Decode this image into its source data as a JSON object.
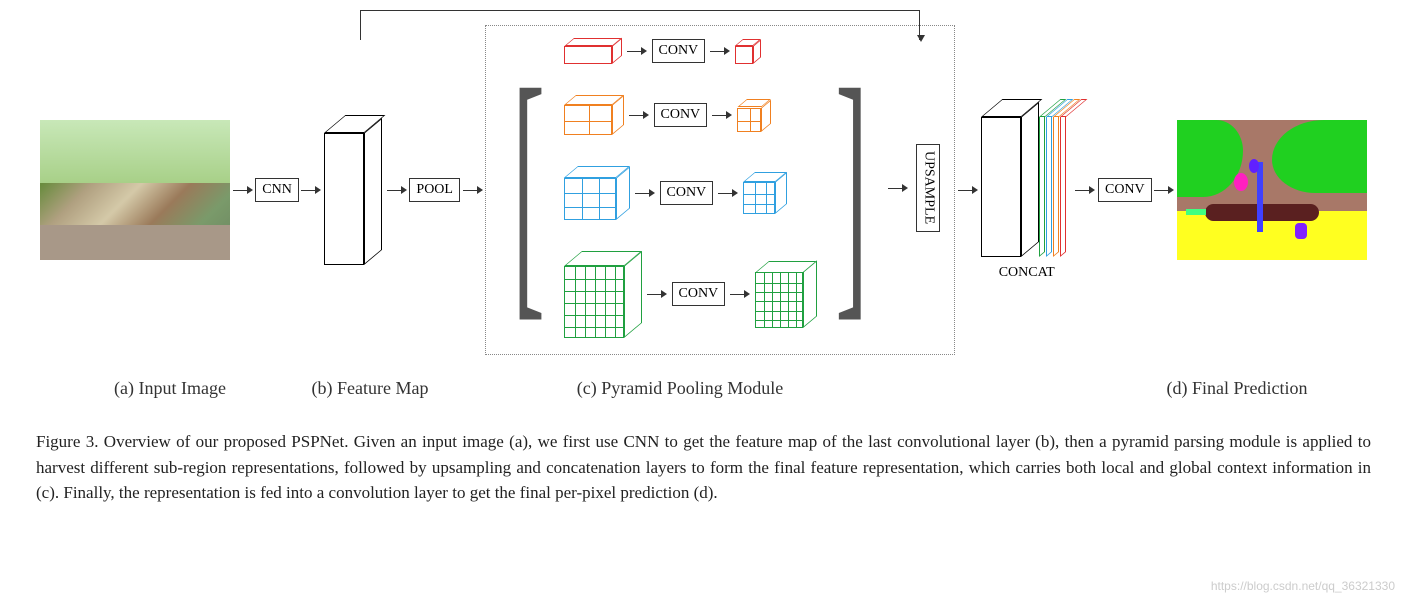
{
  "labels": {
    "a": "(a) Input Image",
    "b": "(b) Feature Map",
    "c": "(c) Pyramid Pooling Module",
    "d": "(d) Final Prediction"
  },
  "ops": {
    "cnn": "CNN",
    "pool": "POOL",
    "conv": "CONV",
    "upsample": "UPSAMPLE",
    "concat": "CONCAT"
  },
  "caption": "Figure 3. Overview of our proposed PSPNet. Given an input image (a), we first use CNN to get the feature map of the last convolutional layer (b), then a pyramid parsing module is applied to harvest different sub-region representations, followed by upsampling and concatenation layers to form the final feature representation, which carries both local and global context information in (c). Finally, the representation is fed into a convolution layer to get the final per-pixel prediction (d).",
  "watermark": "https://blog.csdn.net/qq_36321330",
  "pyramid_branches": [
    {
      "color": "#e03030",
      "grid": 1,
      "pre_w": 48,
      "pre_h": 18,
      "pre_d": 10,
      "post_w": 18,
      "post_h": 18,
      "post_d": 8
    },
    {
      "color": "#f08020",
      "grid": 2,
      "pre_w": 48,
      "pre_h": 30,
      "pre_d": 12,
      "post_w": 24,
      "post_h": 24,
      "post_d": 10
    },
    {
      "color": "#30a0e0",
      "grid": 3,
      "pre_w": 52,
      "pre_h": 42,
      "pre_d": 14,
      "post_w": 32,
      "post_h": 32,
      "post_d": 12
    },
    {
      "color": "#20a040",
      "grid": 6,
      "pre_w": 60,
      "pre_h": 72,
      "pre_d": 18,
      "post_w": 48,
      "post_h": 56,
      "post_d": 14
    }
  ],
  "concat_slabs": [
    {
      "color": "#20a040"
    },
    {
      "color": "#30a0e0"
    },
    {
      "color": "#f08020"
    },
    {
      "color": "#e03030"
    }
  ],
  "segmentation_colors": {
    "tree": "#20d020",
    "ground": "#ffff20",
    "building": "#a87868",
    "person": "#5a2020",
    "pole": "#4040ff",
    "obj_pink": "#ff20c0",
    "obj_purple": "#8020ff",
    "obj_blue": "#6020ff",
    "obj_green": "#40ff80"
  },
  "style": {
    "border_color": "#333333",
    "dotted_border": "#888888",
    "text_color": "#222222",
    "bg": "#ffffff",
    "caption_fontsize": 17,
    "label_fontsize": 18,
    "op_fontsize": 14
  }
}
